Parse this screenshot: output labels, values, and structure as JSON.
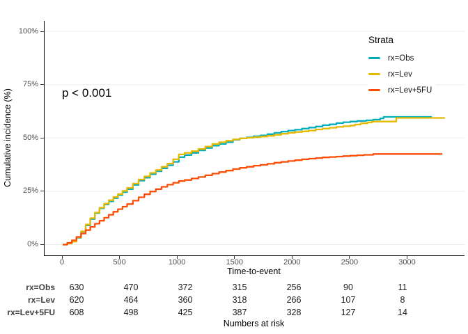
{
  "chart": {
    "p_value": "p < 0.001",
    "xlabel": "Time-to-event",
    "ylabel": "Cumulative incidence (%)"
  },
  "chart_data": {
    "type": "line",
    "subtype": "step-cumulative-incidence",
    "title": "",
    "xlabel": "Time-to-event",
    "ylabel": "Cumulative incidence (%)",
    "annotation": "p < 0.001",
    "x_ticks": [
      0,
      500,
      1000,
      1500,
      2000,
      2500,
      3000
    ],
    "y_ticks": [
      0,
      25,
      50,
      75,
      100
    ],
    "y_tick_labels": [
      "0%",
      "25%",
      "50%",
      "75%",
      "100%"
    ],
    "xlim": [
      -160,
      3490
    ],
    "ylim": [
      -5,
      105
    ],
    "grid": "horizontal-only",
    "legend": {
      "title": "Strata",
      "position": "top-right"
    },
    "series": [
      {
        "name": "rx=Obs",
        "color": "#00AFBB",
        "points": [
          [
            0,
            0
          ],
          [
            40,
            0.6
          ],
          [
            80,
            1.5
          ],
          [
            120,
            3.2
          ],
          [
            160,
            6
          ],
          [
            200,
            9
          ],
          [
            240,
            12
          ],
          [
            280,
            14.8
          ],
          [
            320,
            17
          ],
          [
            360,
            18.8
          ],
          [
            400,
            20.3
          ],
          [
            440,
            21.8
          ],
          [
            480,
            23.2
          ],
          [
            520,
            24.6
          ],
          [
            560,
            26
          ],
          [
            610,
            28
          ],
          [
            660,
            30
          ],
          [
            710,
            31.4
          ],
          [
            760,
            33
          ],
          [
            810,
            34.4
          ],
          [
            860,
            35.8
          ],
          [
            910,
            37.2
          ],
          [
            960,
            38.8
          ],
          [
            1010,
            41
          ],
          [
            1060,
            42
          ],
          [
            1120,
            43
          ],
          [
            1180,
            44.2
          ],
          [
            1240,
            45.3
          ],
          [
            1300,
            46.4
          ],
          [
            1360,
            47.2
          ],
          [
            1420,
            48
          ],
          [
            1480,
            49.2
          ],
          [
            1540,
            49.8
          ],
          [
            1600,
            50.3
          ],
          [
            1660,
            50.8
          ],
          [
            1720,
            51.2
          ],
          [
            1780,
            51.8
          ],
          [
            1840,
            52.4
          ],
          [
            1900,
            53
          ],
          [
            1960,
            53.5
          ],
          [
            2020,
            53.9
          ],
          [
            2080,
            54.4
          ],
          [
            2140,
            54.9
          ],
          [
            2200,
            55.4
          ],
          [
            2260,
            56
          ],
          [
            2320,
            56.4
          ],
          [
            2380,
            57
          ],
          [
            2440,
            57.4
          ],
          [
            2500,
            57.7
          ],
          [
            2560,
            58
          ],
          [
            2640,
            58.3
          ],
          [
            2700,
            58.6
          ],
          [
            2760,
            59.2
          ],
          [
            2790,
            59.9
          ],
          [
            3210,
            59.9
          ]
        ]
      },
      {
        "name": "rx=Lev",
        "color": "#E7B800",
        "points": [
          [
            0,
            0
          ],
          [
            40,
            0.5
          ],
          [
            80,
            1.4
          ],
          [
            120,
            3.4
          ],
          [
            160,
            6.2
          ],
          [
            200,
            9.4
          ],
          [
            240,
            12.4
          ],
          [
            280,
            15
          ],
          [
            320,
            17.3
          ],
          [
            360,
            19.2
          ],
          [
            400,
            20.8
          ],
          [
            440,
            22.3
          ],
          [
            480,
            23.7
          ],
          [
            520,
            25.2
          ],
          [
            560,
            26.6
          ],
          [
            610,
            28.6
          ],
          [
            660,
            30.5
          ],
          [
            710,
            32
          ],
          [
            760,
            33.6
          ],
          [
            810,
            35
          ],
          [
            860,
            36.5
          ],
          [
            910,
            38
          ],
          [
            960,
            40
          ],
          [
            1010,
            42.3
          ],
          [
            1060,
            43
          ],
          [
            1120,
            43.8
          ],
          [
            1180,
            44.8
          ],
          [
            1240,
            46
          ],
          [
            1300,
            47.2
          ],
          [
            1360,
            48
          ],
          [
            1420,
            48.7
          ],
          [
            1480,
            49.3
          ],
          [
            1540,
            49.8
          ],
          [
            1600,
            50.1
          ],
          [
            1660,
            50.4
          ],
          [
            1720,
            50.7
          ],
          [
            1780,
            51
          ],
          [
            1840,
            51.5
          ],
          [
            1900,
            52
          ],
          [
            1960,
            52.4
          ],
          [
            2020,
            52.8
          ],
          [
            2080,
            53.1
          ],
          [
            2140,
            53.5
          ],
          [
            2200,
            54
          ],
          [
            2260,
            54.4
          ],
          [
            2320,
            54.8
          ],
          [
            2380,
            55.2
          ],
          [
            2440,
            55.5
          ],
          [
            2500,
            55.8
          ],
          [
            2540,
            56.3
          ],
          [
            2590,
            56.9
          ],
          [
            2650,
            57.3
          ],
          [
            2690,
            57.7
          ],
          [
            2890,
            57.7
          ],
          [
            2900,
            59.4
          ],
          [
            3323,
            59.4
          ]
        ]
      },
      {
        "name": "rx=Lev+5FU",
        "color": "#FC4E07",
        "points": [
          [
            0,
            0
          ],
          [
            40,
            0.8
          ],
          [
            80,
            2
          ],
          [
            120,
            3.6
          ],
          [
            160,
            5.2
          ],
          [
            200,
            6.8
          ],
          [
            240,
            8.3
          ],
          [
            280,
            9.8
          ],
          [
            320,
            11.2
          ],
          [
            360,
            12.6
          ],
          [
            400,
            14
          ],
          [
            440,
            15.4
          ],
          [
            480,
            16.6
          ],
          [
            520,
            17.8
          ],
          [
            560,
            19
          ],
          [
            610,
            20.6
          ],
          [
            660,
            22.2
          ],
          [
            710,
            23.6
          ],
          [
            760,
            24.9
          ],
          [
            810,
            26
          ],
          [
            860,
            27.1
          ],
          [
            910,
            28.1
          ],
          [
            960,
            29
          ],
          [
            1010,
            29.8
          ],
          [
            1060,
            30.3
          ],
          [
            1120,
            31
          ],
          [
            1180,
            31.7
          ],
          [
            1240,
            32.5
          ],
          [
            1300,
            33.3
          ],
          [
            1360,
            34
          ],
          [
            1420,
            34.7
          ],
          [
            1480,
            35.4
          ],
          [
            1540,
            36
          ],
          [
            1600,
            36.5
          ],
          [
            1660,
            37
          ],
          [
            1720,
            37.4
          ],
          [
            1780,
            37.9
          ],
          [
            1840,
            38.4
          ],
          [
            1900,
            38.8
          ],
          [
            1960,
            39.2
          ],
          [
            2020,
            39.6
          ],
          [
            2080,
            40
          ],
          [
            2140,
            40.3
          ],
          [
            2200,
            40.6
          ],
          [
            2260,
            40.9
          ],
          [
            2320,
            41.1
          ],
          [
            2380,
            41.3
          ],
          [
            2440,
            41.5
          ],
          [
            2500,
            41.7
          ],
          [
            2560,
            41.9
          ],
          [
            2620,
            42.1
          ],
          [
            2700,
            42.5
          ],
          [
            3300,
            42.5
          ]
        ]
      }
    ]
  },
  "colors": {
    "gridline": "#ebebeb",
    "axis_line": "#000000",
    "tick_label": "#4d4d4d"
  },
  "risk_table": {
    "title": "Numbers at risk",
    "time_points": [
      0,
      500,
      1000,
      1500,
      2000,
      2500,
      3000
    ],
    "rows": [
      {
        "label": "rx=Obs",
        "values": [
          630,
          470,
          372,
          315,
          256,
          90,
          11
        ]
      },
      {
        "label": "rx=Lev",
        "values": [
          620,
          464,
          360,
          318,
          266,
          107,
          8
        ]
      },
      {
        "label": "rx=Lev+5FU",
        "values": [
          608,
          498,
          425,
          387,
          328,
          127,
          14
        ]
      }
    ]
  }
}
